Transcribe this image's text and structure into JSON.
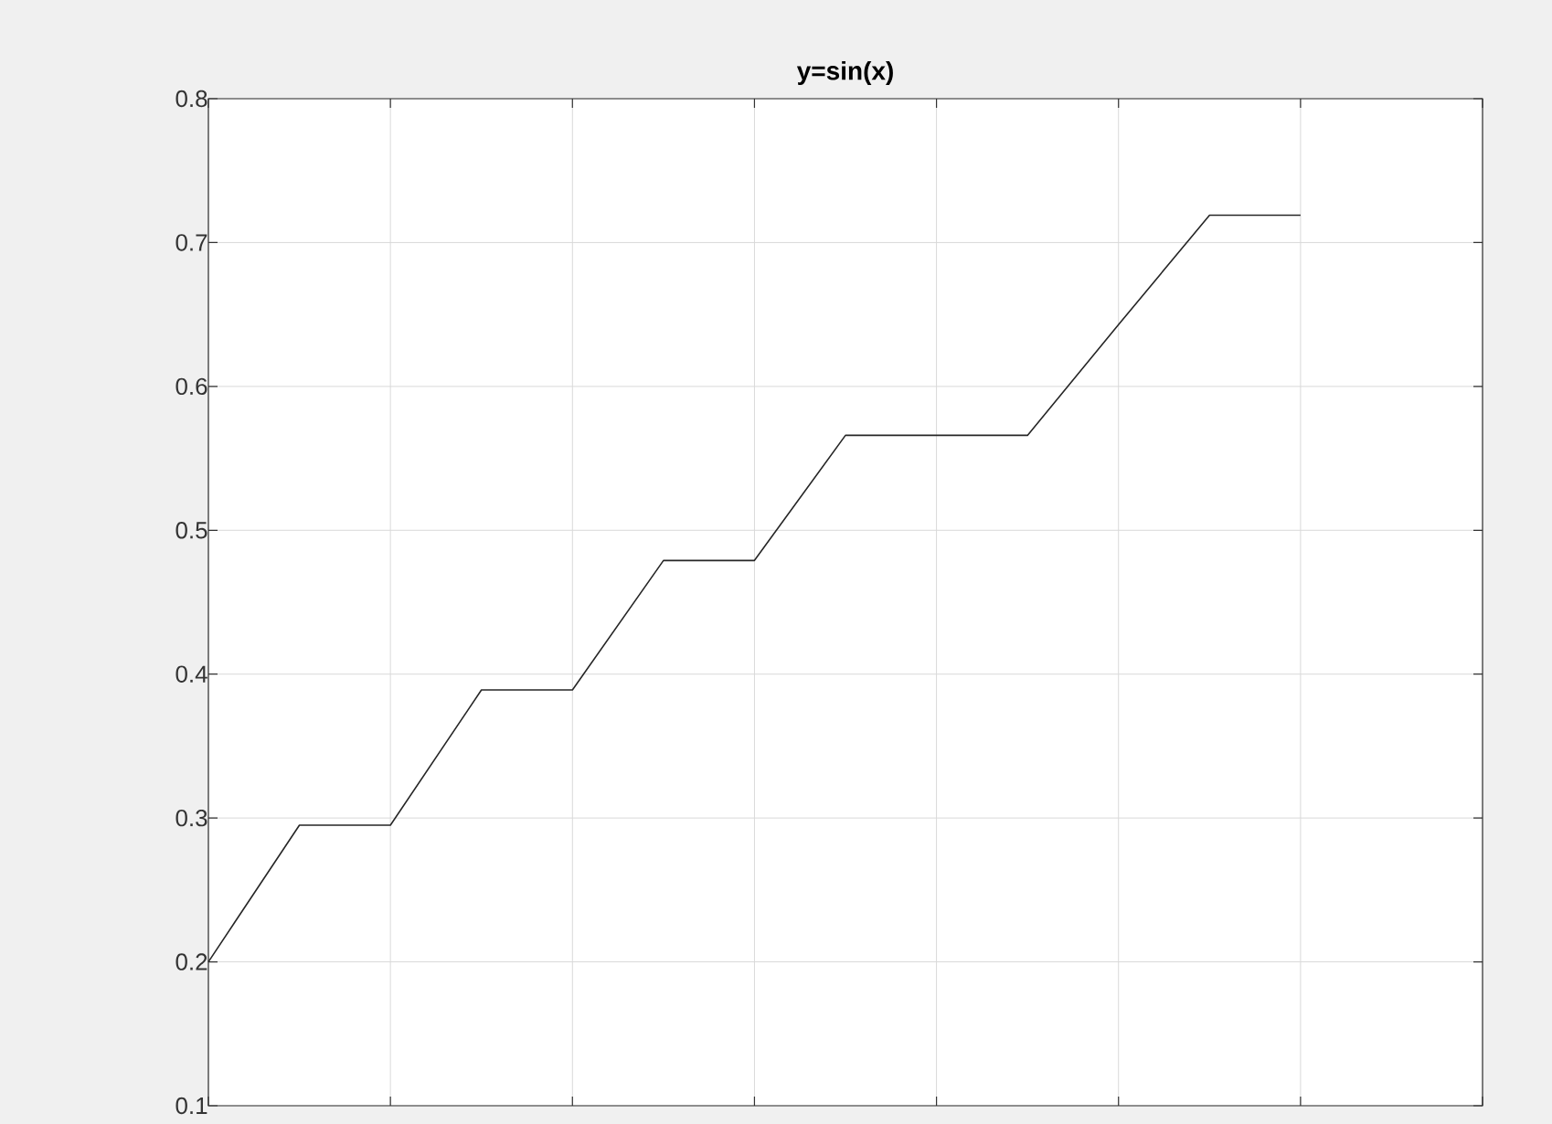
{
  "chart_data": {
    "type": "line",
    "title": "y=sin(x)",
    "categories": [
      null,
      null,
      null,
      null,
      null,
      null,
      null,
      null,
      null,
      null,
      null,
      null,
      null,
      null,
      null
    ],
    "values": [
      0.2,
      0.295,
      0.295,
      0.389,
      0.389,
      0.479,
      0.479,
      0.566,
      0.566,
      0.566,
      0.643,
      0.719,
      0.719,
      null,
      null
    ],
    "color": "#262626",
    "ylim": [
      0.1,
      0.8
    ],
    "yticks": [
      0.1,
      0.2,
      0.3,
      0.4,
      0.5,
      0.6,
      0.7,
      0.8
    ],
    "grid": true,
    "tick_labels": "y"
  }
}
